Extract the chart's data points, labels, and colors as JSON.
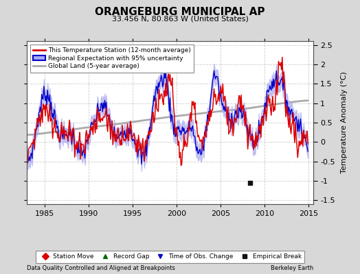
{
  "title": "ORANGEBURG MUNICIPAL AP",
  "subtitle": "33.456 N, 80.863 W (United States)",
  "ylabel": "Temperature Anomaly (°C)",
  "xlabel_left": "Data Quality Controlled and Aligned at Breakpoints",
  "xlabel_right": "Berkeley Earth",
  "xlim": [
    1983.0,
    2015.5
  ],
  "ylim": [
    -1.6,
    2.6
  ],
  "yticks": [
    -1.5,
    -1.0,
    -0.5,
    0.0,
    0.5,
    1.0,
    1.5,
    2.0,
    2.5
  ],
  "xticks": [
    1985,
    1990,
    1995,
    2000,
    2005,
    2010,
    2015
  ],
  "fig_bg_color": "#d8d8d8",
  "plot_bg_color": "#ffffff",
  "grid_color": "#cccccc",
  "station_color": "#dd0000",
  "regional_color": "#0000cc",
  "regional_fill_color": "#aaaaee",
  "global_color": "#aaaaaa",
  "empirical_break_year": 2008.3,
  "empirical_break_value": -1.05,
  "legend_labels": [
    "This Temperature Station (12-month average)",
    "Regional Expectation with 95% uncertainty",
    "Global Land (5-year average)"
  ],
  "bottom_legend": [
    {
      "label": "Station Move",
      "color": "#dd0000",
      "marker": "D"
    },
    {
      "label": "Record Gap",
      "color": "#006600",
      "marker": "^"
    },
    {
      "label": "Time of Obs. Change",
      "color": "#0000cc",
      "marker": "v"
    },
    {
      "label": "Empirical Break",
      "color": "#111111",
      "marker": "s"
    }
  ]
}
